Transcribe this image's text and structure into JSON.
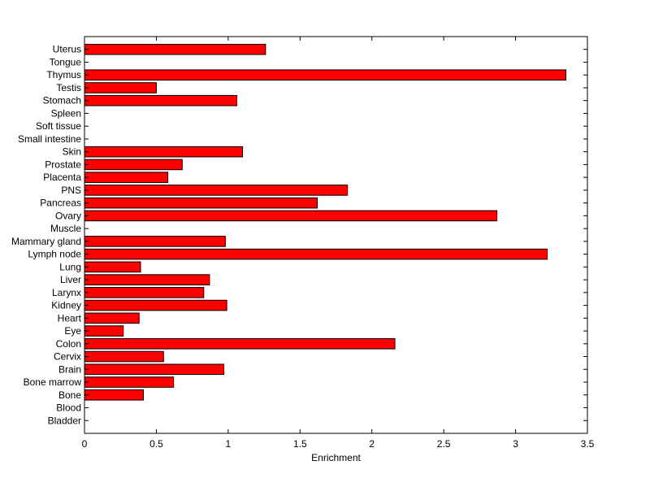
{
  "chart_data": {
    "type": "bar",
    "orientation": "horizontal",
    "title": "",
    "xlabel": "Enrichment",
    "ylabel": "",
    "xlim": [
      0,
      3.5
    ],
    "xticks": [
      0,
      0.5,
      1,
      1.5,
      2,
      2.5,
      3,
      3.5
    ],
    "xtick_labels": [
      "0",
      "0.5",
      "1",
      "1.5",
      "2",
      "2.5",
      "3",
      "3.5"
    ],
    "grid": false,
    "legend": "none",
    "bar_color": "#ff0000",
    "bar_edge_color": "#000000",
    "categories": [
      "Bladder",
      "Blood",
      "Bone",
      "Bone marrow",
      "Brain",
      "Cervix",
      "Colon",
      "Eye",
      "Heart",
      "Kidney",
      "Larynx",
      "Liver",
      "Lung",
      "Lymph node",
      "Mammary gland",
      "Muscle",
      "Ovary",
      "Pancreas",
      "PNS",
      "Placenta",
      "Prostate",
      "Skin",
      "Small intestine",
      "Soft tissue",
      "Spleen",
      "Stomach",
      "Testis",
      "Thymus",
      "Tongue",
      "Uterus"
    ],
    "values": [
      0,
      0,
      0.41,
      0.62,
      0.97,
      0.55,
      2.16,
      0.27,
      0.38,
      0.99,
      0.83,
      0.87,
      0.39,
      3.22,
      0.98,
      0,
      2.87,
      1.62,
      1.83,
      0.58,
      0.68,
      1.1,
      0,
      0,
      0,
      1.06,
      0.5,
      3.35,
      0,
      1.26
    ]
  }
}
